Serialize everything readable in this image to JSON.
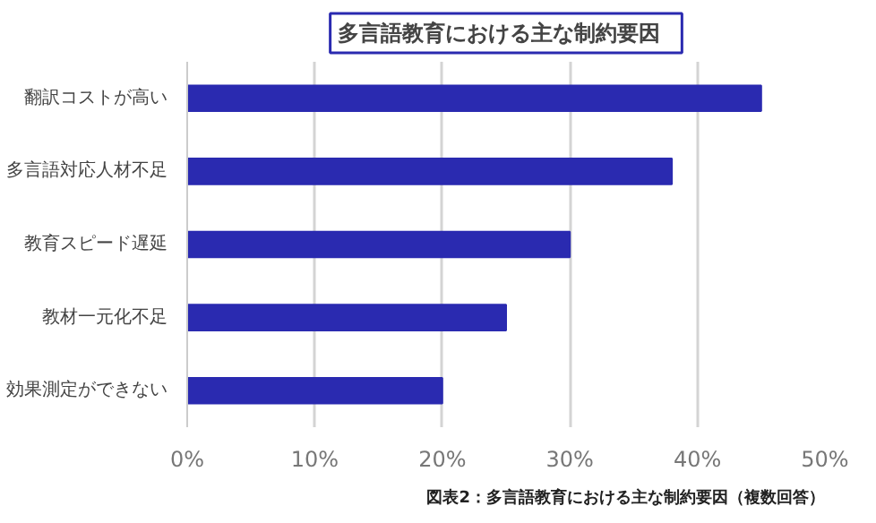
{
  "chart_data": {
    "type": "bar",
    "orientation": "horizontal",
    "title": "多言語教育における主な制約要因",
    "categories": [
      "翻訳コストが高い",
      "多言語対応人材不足",
      "教育スピード遅延",
      "教材一元化不足",
      "効果測定ができない"
    ],
    "values": [
      45,
      38,
      30,
      25,
      20
    ],
    "color": "#2a2ab0",
    "xlim": [
      0,
      50
    ],
    "xticks": [
      {
        "value": 0,
        "label": "0%"
      },
      {
        "value": 10,
        "label": "10%"
      },
      {
        "value": 20,
        "label": "20%"
      },
      {
        "value": 30,
        "label": "30%"
      },
      {
        "value": 40,
        "label": "40%"
      },
      {
        "value": 50,
        "label": "50%"
      }
    ],
    "grid": "x",
    "annotations": [
      "図表2：多言語教育における主な制約要因（複数回答）"
    ]
  }
}
